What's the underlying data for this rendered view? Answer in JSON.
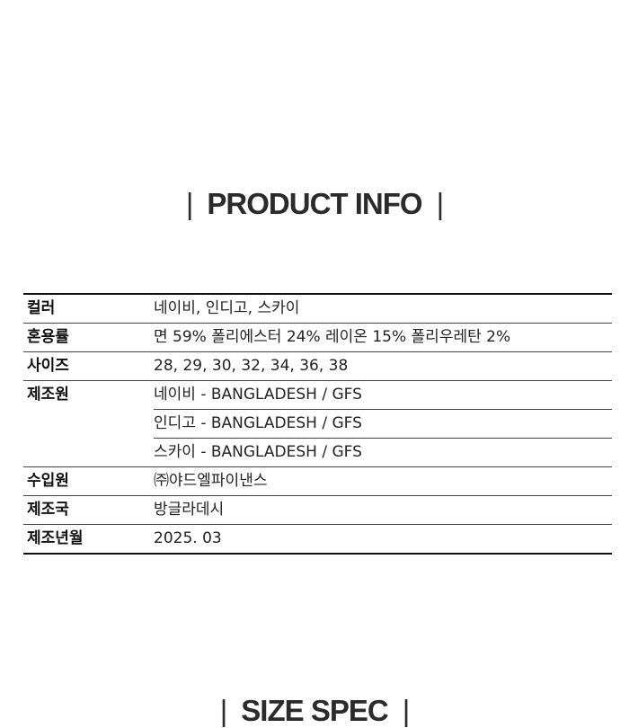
{
  "product_info_title": "PRODUCT INFO",
  "size_spec_title": "SIZE SPEC",
  "divider": "|",
  "rows": [
    {
      "label": "컬러",
      "values": [
        "네이비, 인디고, 스카이"
      ]
    },
    {
      "label": "혼용률",
      "values": [
        "면 59% 폴리에스터 24% 레이온 15% 폴리우레탄 2%"
      ]
    },
    {
      "label": "사이즈",
      "values": [
        "28, 29, 30, 32, 34, 36, 38"
      ]
    },
    {
      "label": "제조원",
      "values": [
        "네이비 - BANGLADESH / GFS",
        "인디고 - BANGLADESH / GFS",
        "스카이 - BANGLADESH / GFS"
      ]
    },
    {
      "label": "수입원",
      "values": [
        "㈜야드엘파이낸스"
      ]
    },
    {
      "label": "제조국",
      "values": [
        "방글라데시"
      ]
    },
    {
      "label": "제조년월",
      "values": [
        "2025. 03"
      ]
    }
  ]
}
